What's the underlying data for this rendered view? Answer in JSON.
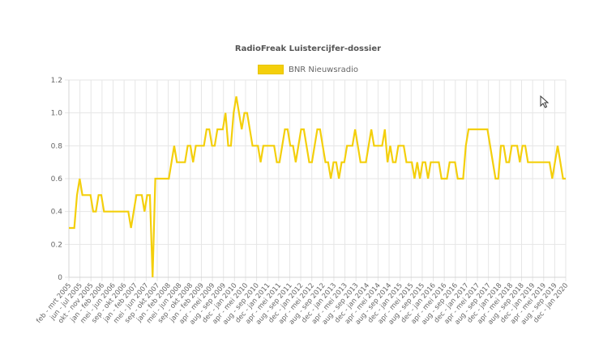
{
  "chart_data": {
    "type": "line",
    "title": "RadioFreak Luistercijfer-dossier",
    "xlabel": "",
    "ylabel": "",
    "ylim": [
      0,
      1.2
    ],
    "yticks": [
      "0",
      "0.2",
      "0.4",
      "0.6",
      "0.8",
      "1.0",
      "1.2"
    ],
    "grid": true,
    "legend_position": "top",
    "series": [
      {
        "name": "BNR Nieuwsradio",
        "color": "#f4cf0b",
        "values": [
          0.3,
          0.3,
          0.3,
          0.5,
          0.6,
          0.5,
          0.5,
          0.5,
          0.5,
          0.4,
          0.4,
          0.5,
          0.5,
          0.4,
          0.4,
          0.4,
          0.4,
          0.4,
          0.4,
          0.4,
          0.4,
          0.4,
          0.4,
          0.3,
          0.4,
          0.5,
          0.5,
          0.5,
          0.4,
          0.5,
          0.5,
          0.0,
          0.6,
          0.6,
          0.6,
          0.6,
          0.6,
          0.6,
          0.7,
          0.8,
          0.7,
          0.7,
          0.7,
          0.7,
          0.8,
          0.8,
          0.7,
          0.8,
          0.8,
          0.8,
          0.8,
          0.9,
          0.9,
          0.8,
          0.8,
          0.9,
          0.9,
          0.9,
          1.0,
          0.8,
          0.8,
          1.0,
          1.1,
          1.0,
          0.9,
          1.0,
          1.0,
          0.9,
          0.8,
          0.8,
          0.8,
          0.7,
          0.8,
          0.8,
          0.8,
          0.8,
          0.8,
          0.7,
          0.7,
          0.8,
          0.9,
          0.9,
          0.8,
          0.8,
          0.7,
          0.8,
          0.9,
          0.9,
          0.8,
          0.7,
          0.7,
          0.8,
          0.9,
          0.9,
          0.8,
          0.7,
          0.7,
          0.6,
          0.7,
          0.7,
          0.6,
          0.7,
          0.7,
          0.8,
          0.8,
          0.8,
          0.9,
          0.8,
          0.7,
          0.7,
          0.7,
          0.8,
          0.9,
          0.8,
          0.8,
          0.8,
          0.8,
          0.9,
          0.7,
          0.8,
          0.7,
          0.7,
          0.8,
          0.8,
          0.8,
          0.7,
          0.7,
          0.7,
          0.6,
          0.7,
          0.6,
          0.7,
          0.7,
          0.6,
          0.7,
          0.7,
          0.7,
          0.7,
          0.6,
          0.6,
          0.6,
          0.7,
          0.7,
          0.7,
          0.6,
          0.6,
          0.6,
          0.8,
          0.9,
          0.9,
          0.9,
          0.9,
          0.9,
          0.9,
          0.9,
          0.9,
          0.8,
          0.7,
          0.6,
          0.6,
          0.8,
          0.8,
          0.7,
          0.7,
          0.8,
          0.8,
          0.8,
          0.7,
          0.8,
          0.8,
          0.7,
          0.7,
          0.7,
          0.7,
          0.7,
          0.7,
          0.7,
          0.7,
          0.7,
          0.6,
          0.7,
          0.8,
          0.7,
          0.6,
          0.6
        ]
      }
    ],
    "x_tick_labels": [
      "feb - mrt 2005",
      "jun - jul 2005",
      "okt - nov 2005",
      "jan - feb 2006",
      "mei - jun 2006",
      "sep - okt 2006",
      "jan - feb 2007",
      "mei - jun 2007",
      "sep - okt 2007",
      "jan - feb 2008",
      "mei - jun 2008",
      "sep - okt 2008",
      "jan - feb 2009",
      "apr - mei 2009",
      "aug - sep 2009",
      "dec - jan 2010",
      "apr - mei 2010",
      "aug - sep 2010",
      "dec - jan 2011",
      "apr - mei 2011",
      "aug - sep 2011",
      "dec - jan 2012",
      "apr - mei 2012",
      "aug - sep 2012",
      "dec - jan 2013",
      "apr - mei 2013",
      "aug - sep 2013",
      "dec - jan 2014",
      "apr - mei 2014",
      "aug - sep 2014",
      "dec - jan 2015",
      "apr - mei 2015",
      "aug - sep 2015",
      "dec - jan 2016",
      "apr - mei 2016",
      "aug - sep 2016",
      "dec - jan 2017",
      "apr - mei 2017",
      "aug - sep 2017",
      "dec - jan 2018",
      "apr - mei 2018",
      "aug - sep 2018",
      "dec - jan 2019",
      "apr - mei 2019",
      "aug - sep 2019",
      "dec - jan 2020"
    ]
  }
}
